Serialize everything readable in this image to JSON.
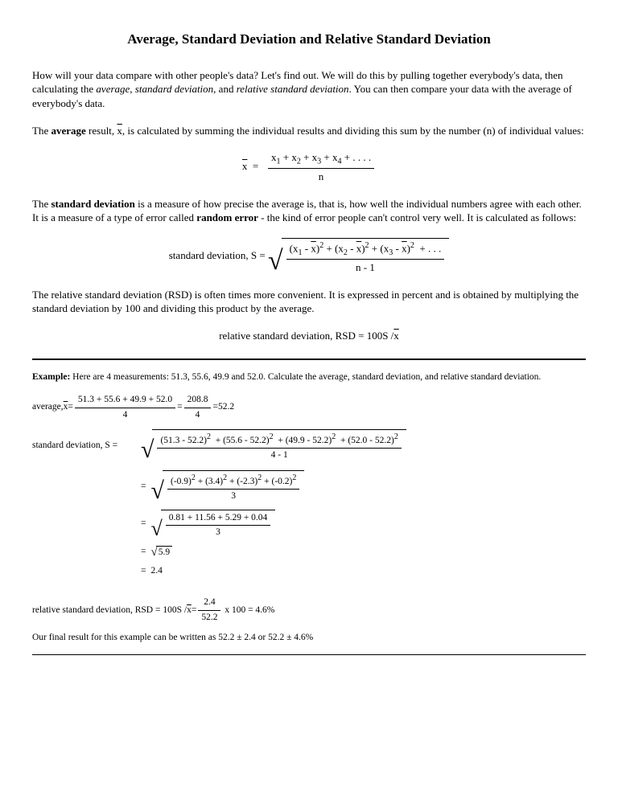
{
  "title": "Average, Standard Deviation and Relative Standard Deviation",
  "intro": "How will your data compare with other people's data?   Let's find out.  We will do this by pulling together everybody's data, then calculating the ",
  "intro_terms": {
    "avg": "average",
    "sd": "standard deviation",
    "rsd": "relative standard deviation"
  },
  "intro_after": ".  You can then compare your data with the average of everybody's data.",
  "avg_pre": "The ",
  "avg_bold": "average",
  "avg_post1": " result, ",
  "avg_post2": ", is calculated by summing the individual results and dividing this sum by the number (n) of individual values:",
  "avg_formula": {
    "num_parts": [
      "x",
      "1",
      " + x",
      "2",
      " + x",
      "3",
      " + x",
      "4",
      " + . . . ."
    ],
    "den": "n"
  },
  "sd_pre": "The ",
  "sd_bold": "standard deviation",
  "sd_mid": " is a measure of how precise the average is, that is, how well the individual numbers agree with each other.  It is a measure of a type of error called ",
  "sd_bold2": "random error",
  "sd_after": " - the kind of error people can't control very well.  It is calculated as follows:",
  "sd_label": "standard deviation, S  = ",
  "sd_den": "n - 1",
  "rsd_para": "The relative standard deviation (RSD) is often times more convenient.  It is expressed in percent and is obtained by multiplying the standard deviation by 100 and dividing this product by the average.",
  "rsd_formula": "relative standard deviation, RSD = 100S /",
  "example": {
    "heading_bold": "Example:",
    "heading_rest": " Here are 4 measurements:  51.3, 55.6, 49.9 and 52.0.  Calculate the average, standard deviation, and relative standard deviation.",
    "avg_label": "average, ",
    "avg_num": "51.3 + 55.6 + 49.9 + 52.0",
    "avg_den1": "4",
    "avg_sum": "208.8",
    "avg_den2": "4",
    "avg_result": "52.2",
    "sd_label": "standard deviation, S  = ",
    "sd_line1_terms": [
      "(51.3 - 52.2)",
      "(55.6 - 52.2)",
      "(49.9 - 52.2)",
      "(52.0 - 52.2)"
    ],
    "sd_line1_den": "4 - 1",
    "sd_line2_terms": [
      "(-0.9)",
      "(3.4)",
      "(-2.3)",
      "(-0.2)"
    ],
    "sd_line2_den": "3",
    "sd_line3_num": "0.81 + 11.56 + 5.29 + 0.04",
    "sd_line3_den": "3",
    "sd_sqrt": "5.9",
    "sd_result": "2.4",
    "rsd_label": "relative standard deviation, RSD = 100S / ",
    "rsd_num": "2.4",
    "rsd_den": "52.2",
    "rsd_mult": "x 100  = 4.6%",
    "final": "Our final result for this example can be written as  52.2 ± 2.4   or   52.2 ± 4.6%"
  }
}
